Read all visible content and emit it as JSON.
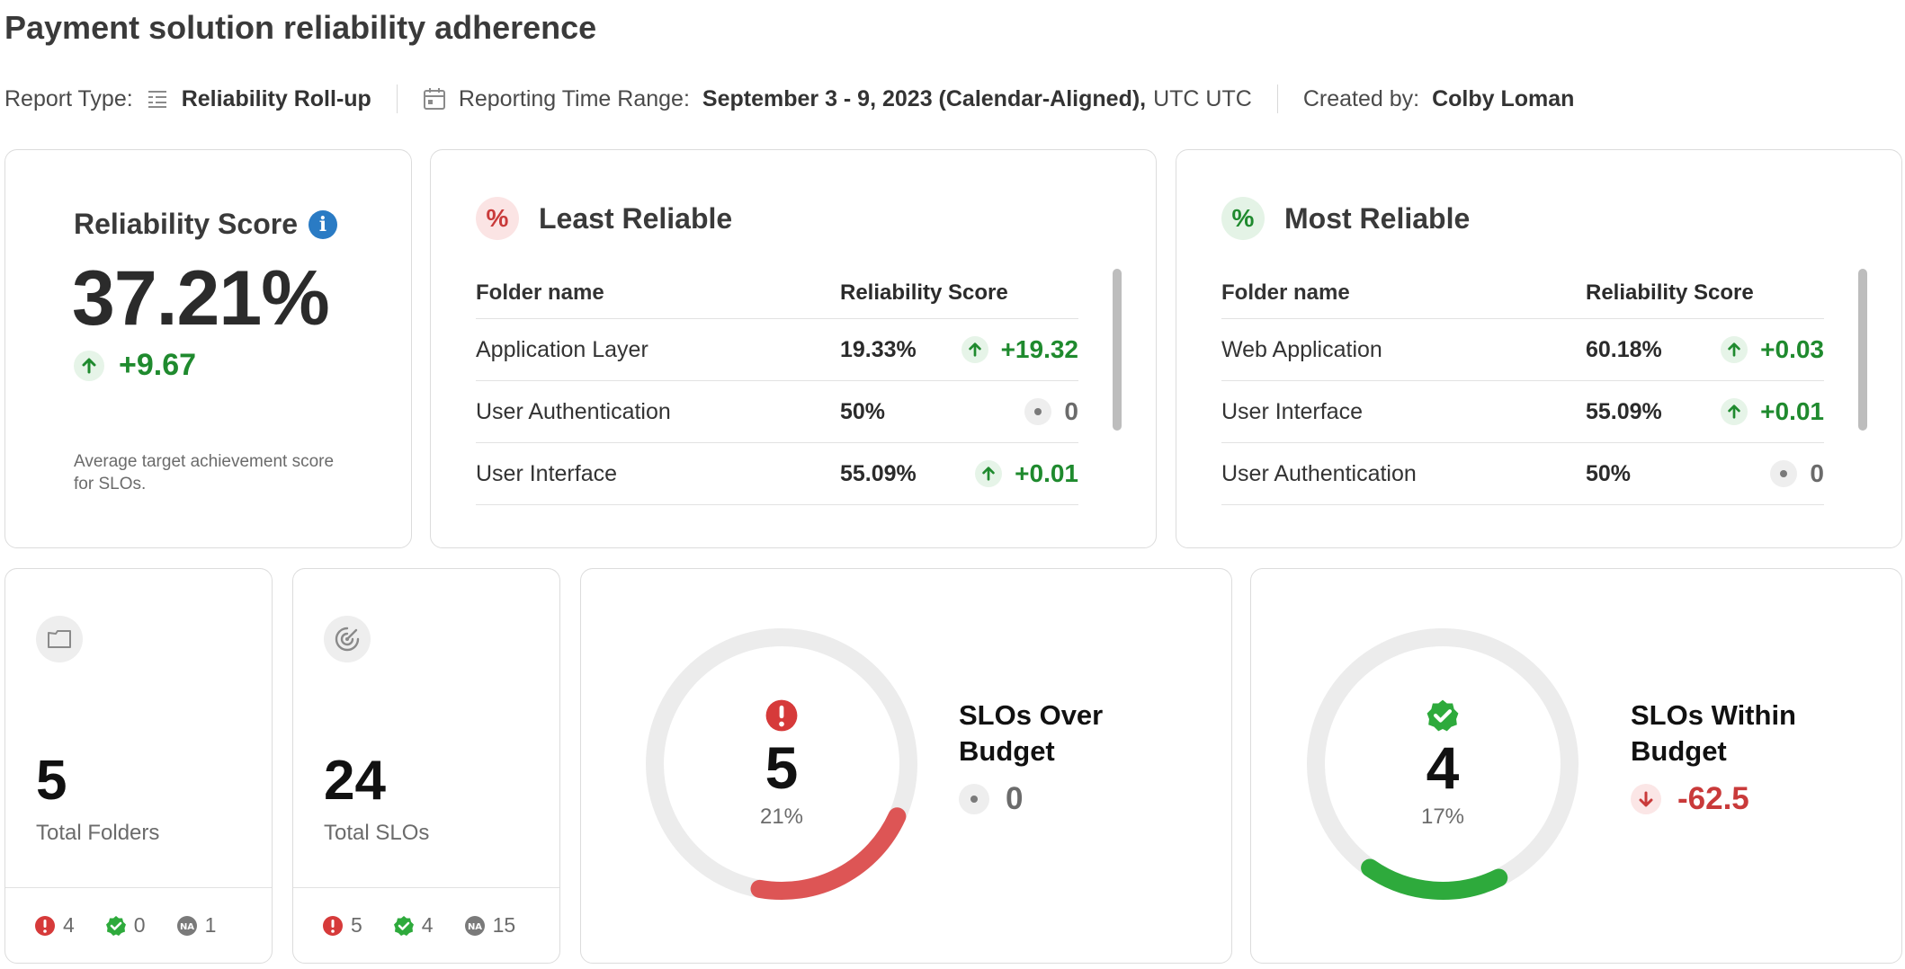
{
  "page_title": "Payment solution reliability adherence",
  "meta": {
    "report_type_label": "Report Type:",
    "report_type_value": "Reliability Roll-up",
    "time_range_label": "Reporting Time Range:",
    "time_range_value": "September 3 - 9, 2023 (Calendar-Aligned),",
    "time_range_tz": "UTC UTC",
    "created_by_label": "Created by:",
    "created_by_value": "Colby Loman"
  },
  "reliability_score": {
    "title": "Reliability Score",
    "value": "37.21%",
    "delta": "+9.67",
    "description": "Average target achievement score for SLOs."
  },
  "least_reliable": {
    "title": "Least Reliable",
    "col_name": "Folder name",
    "col_score": "Reliability Score",
    "rows": [
      {
        "name": "Application Layer",
        "score": "19.33%",
        "delta": "+19.32",
        "trend": "up"
      },
      {
        "name": "User Authentication",
        "score": "50%",
        "delta": "0",
        "trend": "neutral"
      },
      {
        "name": "User Interface",
        "score": "55.09%",
        "delta": "+0.01",
        "trend": "up"
      }
    ]
  },
  "most_reliable": {
    "title": "Most Reliable",
    "col_name": "Folder name",
    "col_score": "Reliability Score",
    "rows": [
      {
        "name": "Web Application",
        "score": "60.18%",
        "delta": "+0.03",
        "trend": "up"
      },
      {
        "name": "User Interface",
        "score": "55.09%",
        "delta": "+0.01",
        "trend": "up"
      },
      {
        "name": "User Authentication",
        "score": "50%",
        "delta": "0",
        "trend": "neutral"
      }
    ]
  },
  "total_folders": {
    "value": "5",
    "label": "Total Folders",
    "over_budget": "4",
    "within_budget": "0",
    "no_data": "1"
  },
  "total_slos": {
    "value": "24",
    "label": "Total SLOs",
    "over_budget": "5",
    "within_budget": "4",
    "no_data": "15"
  },
  "slos_over_budget": {
    "value": "5",
    "percent": "21%",
    "fraction": 0.21,
    "title": "SLOs Over Budget",
    "delta": "0"
  },
  "slos_within_budget": {
    "value": "4",
    "percent": "17%",
    "fraction": 0.17,
    "title": "SLOs Within Budget",
    "delta": "-62.5"
  },
  "colors": {
    "danger": "#dd5555",
    "success": "#2eaa3c",
    "track": "#ececec",
    "info": "#2a7bc4"
  },
  "icons": {
    "report_type": "report-list-icon",
    "time_range": "calendar-icon",
    "info": "info-icon",
    "folder": "folder-icon",
    "slo": "target-icon",
    "over": "alert-circle-icon",
    "within": "check-badge-icon",
    "no_data": "na-icon"
  }
}
